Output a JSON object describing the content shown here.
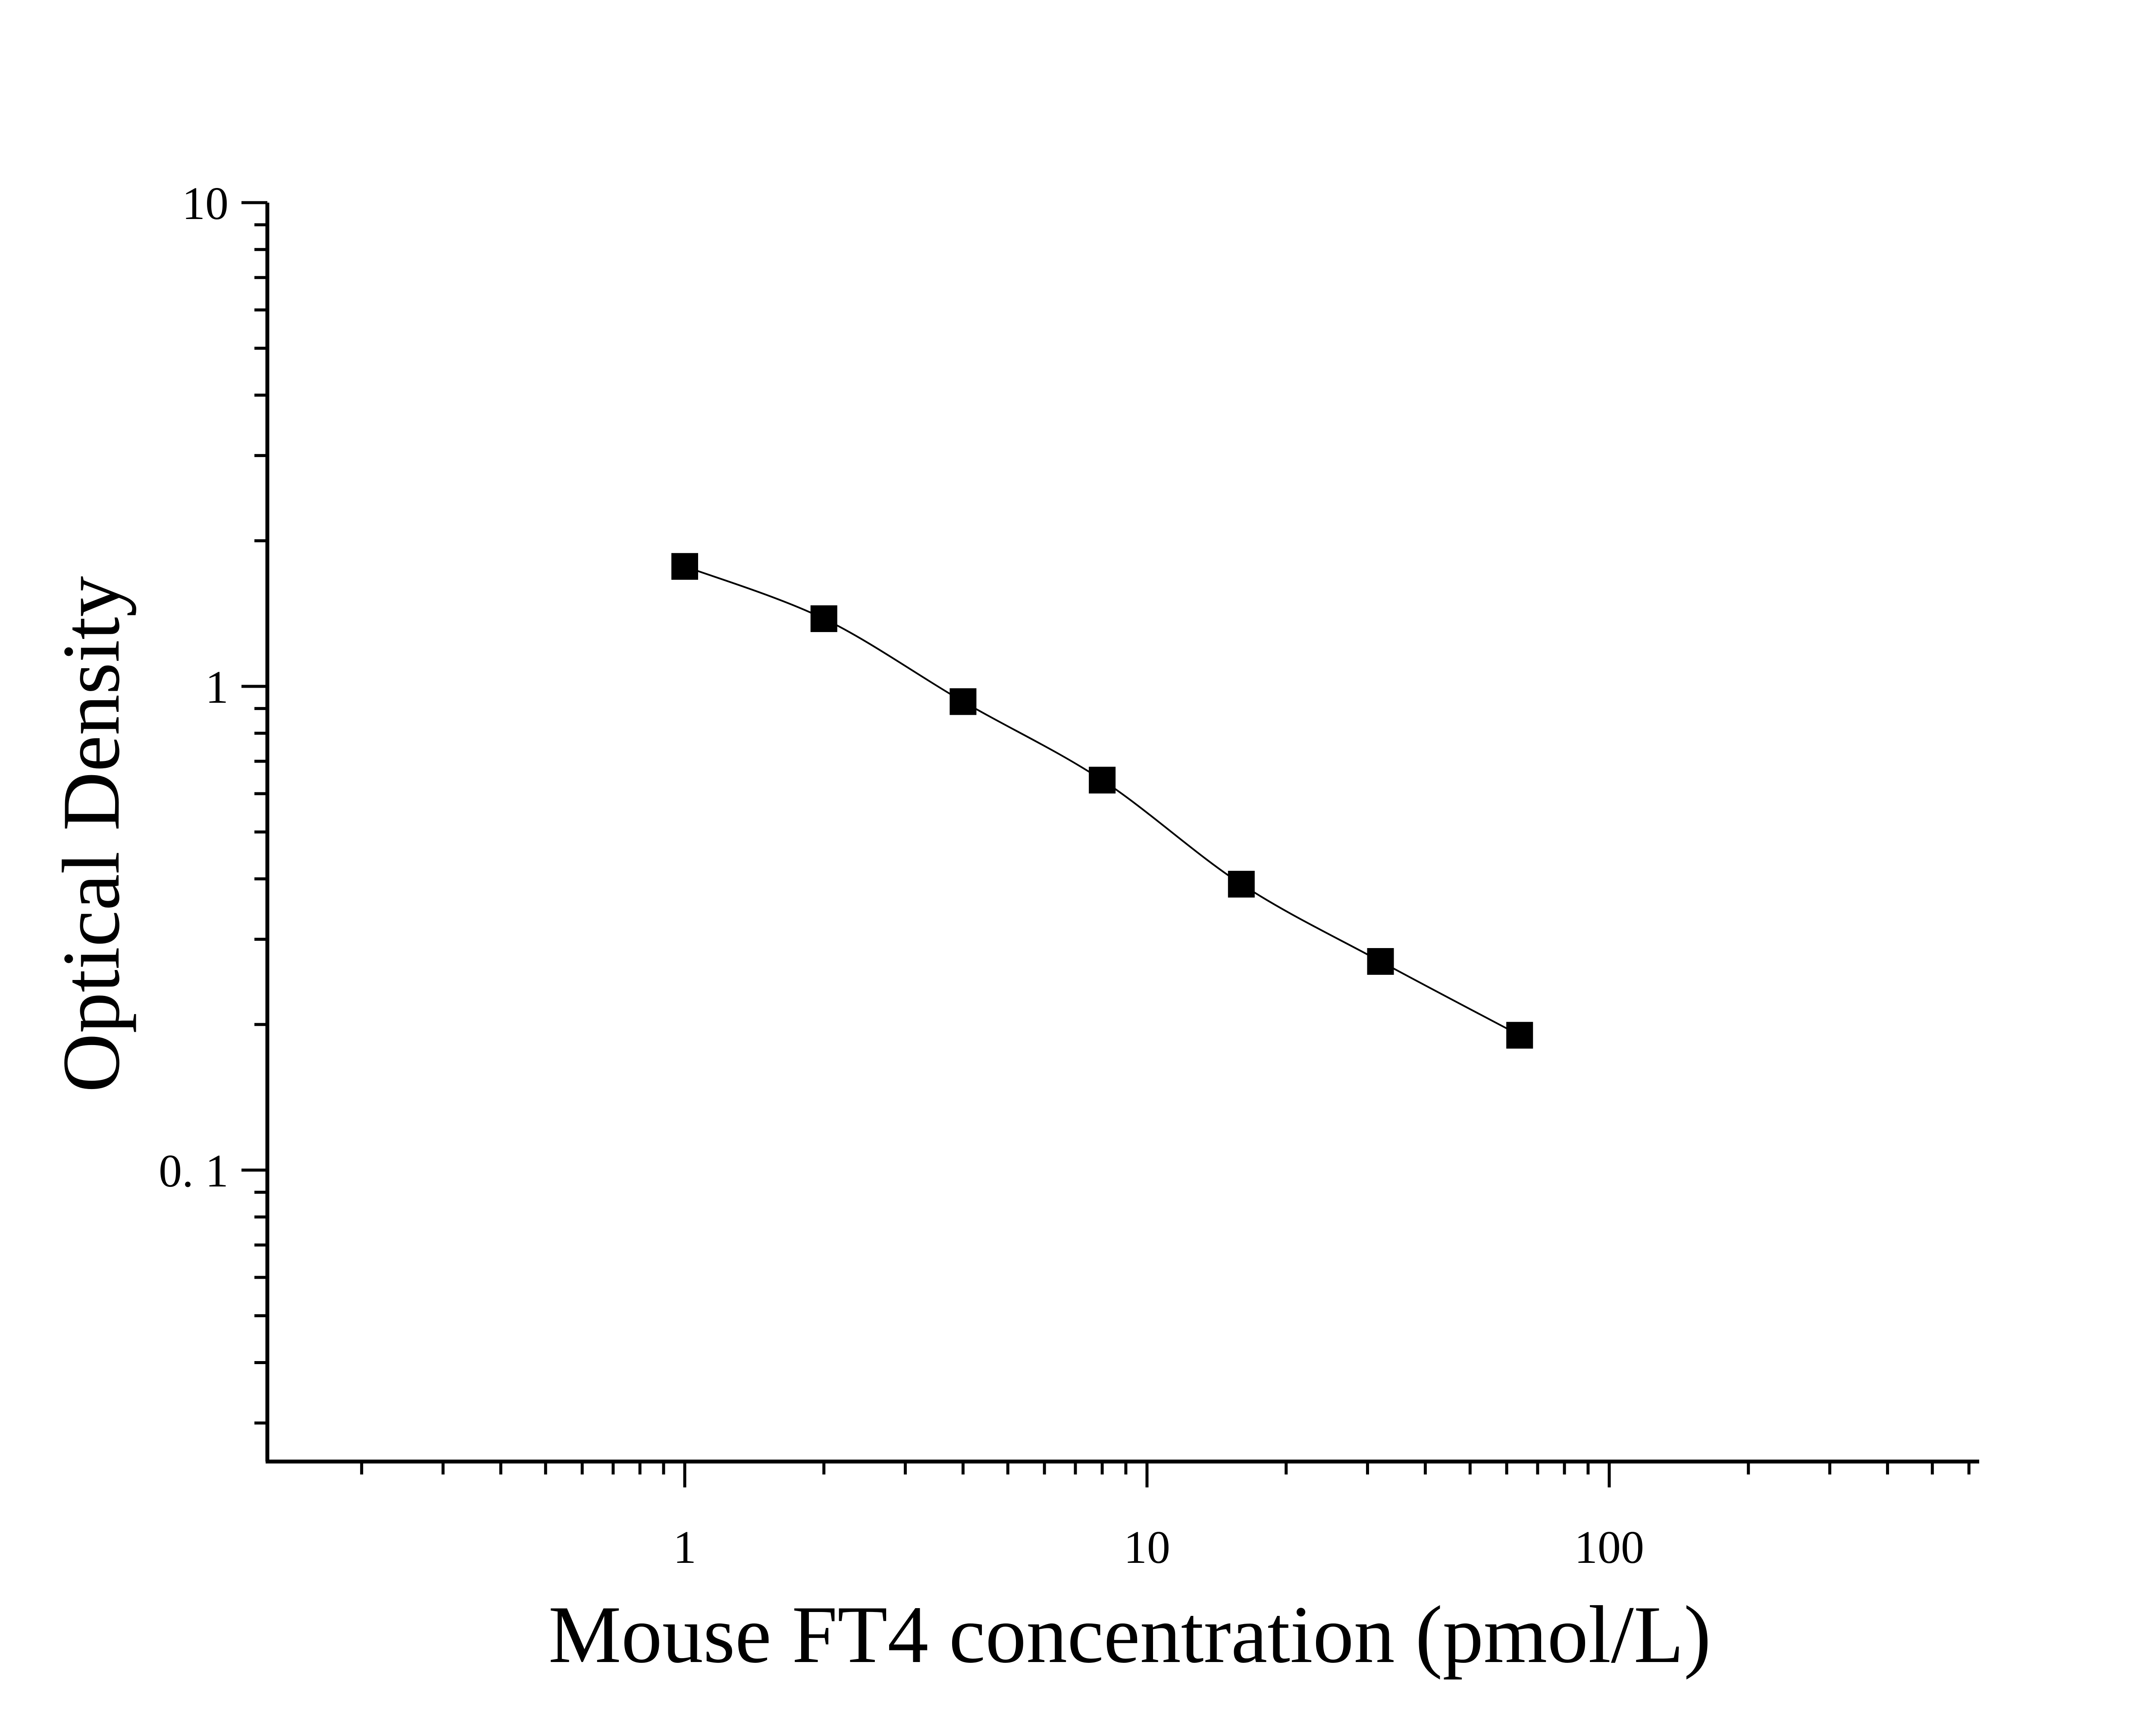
{
  "chart_data": {
    "type": "scatter",
    "title": "",
    "xlabel": "Mouse FT4 concentration (pmol/L)",
    "ylabel": "Optical Density",
    "x_scale": "log",
    "y_scale": "log",
    "xlim": [
      0.1,
      600
    ],
    "ylim": [
      0.025,
      10
    ],
    "x_ticks": [
      {
        "value": 1,
        "label": "1"
      },
      {
        "value": 10,
        "label": "10"
      },
      {
        "value": 100,
        "label": "100"
      }
    ],
    "y_ticks": [
      {
        "value": 0.1,
        "label": "0. 1"
      },
      {
        "value": 1,
        "label": "1"
      },
      {
        "value": 10,
        "label": "10"
      }
    ],
    "grid": false,
    "legend": "none",
    "series": [
      {
        "x": [
          1,
          2,
          4,
          8,
          16,
          32,
          64
        ],
        "y": [
          1.77,
          1.38,
          0.93,
          0.64,
          0.39,
          0.27,
          0.19
        ],
        "marker": "square",
        "fit": "4PL curve",
        "color": "#000000"
      }
    ]
  }
}
